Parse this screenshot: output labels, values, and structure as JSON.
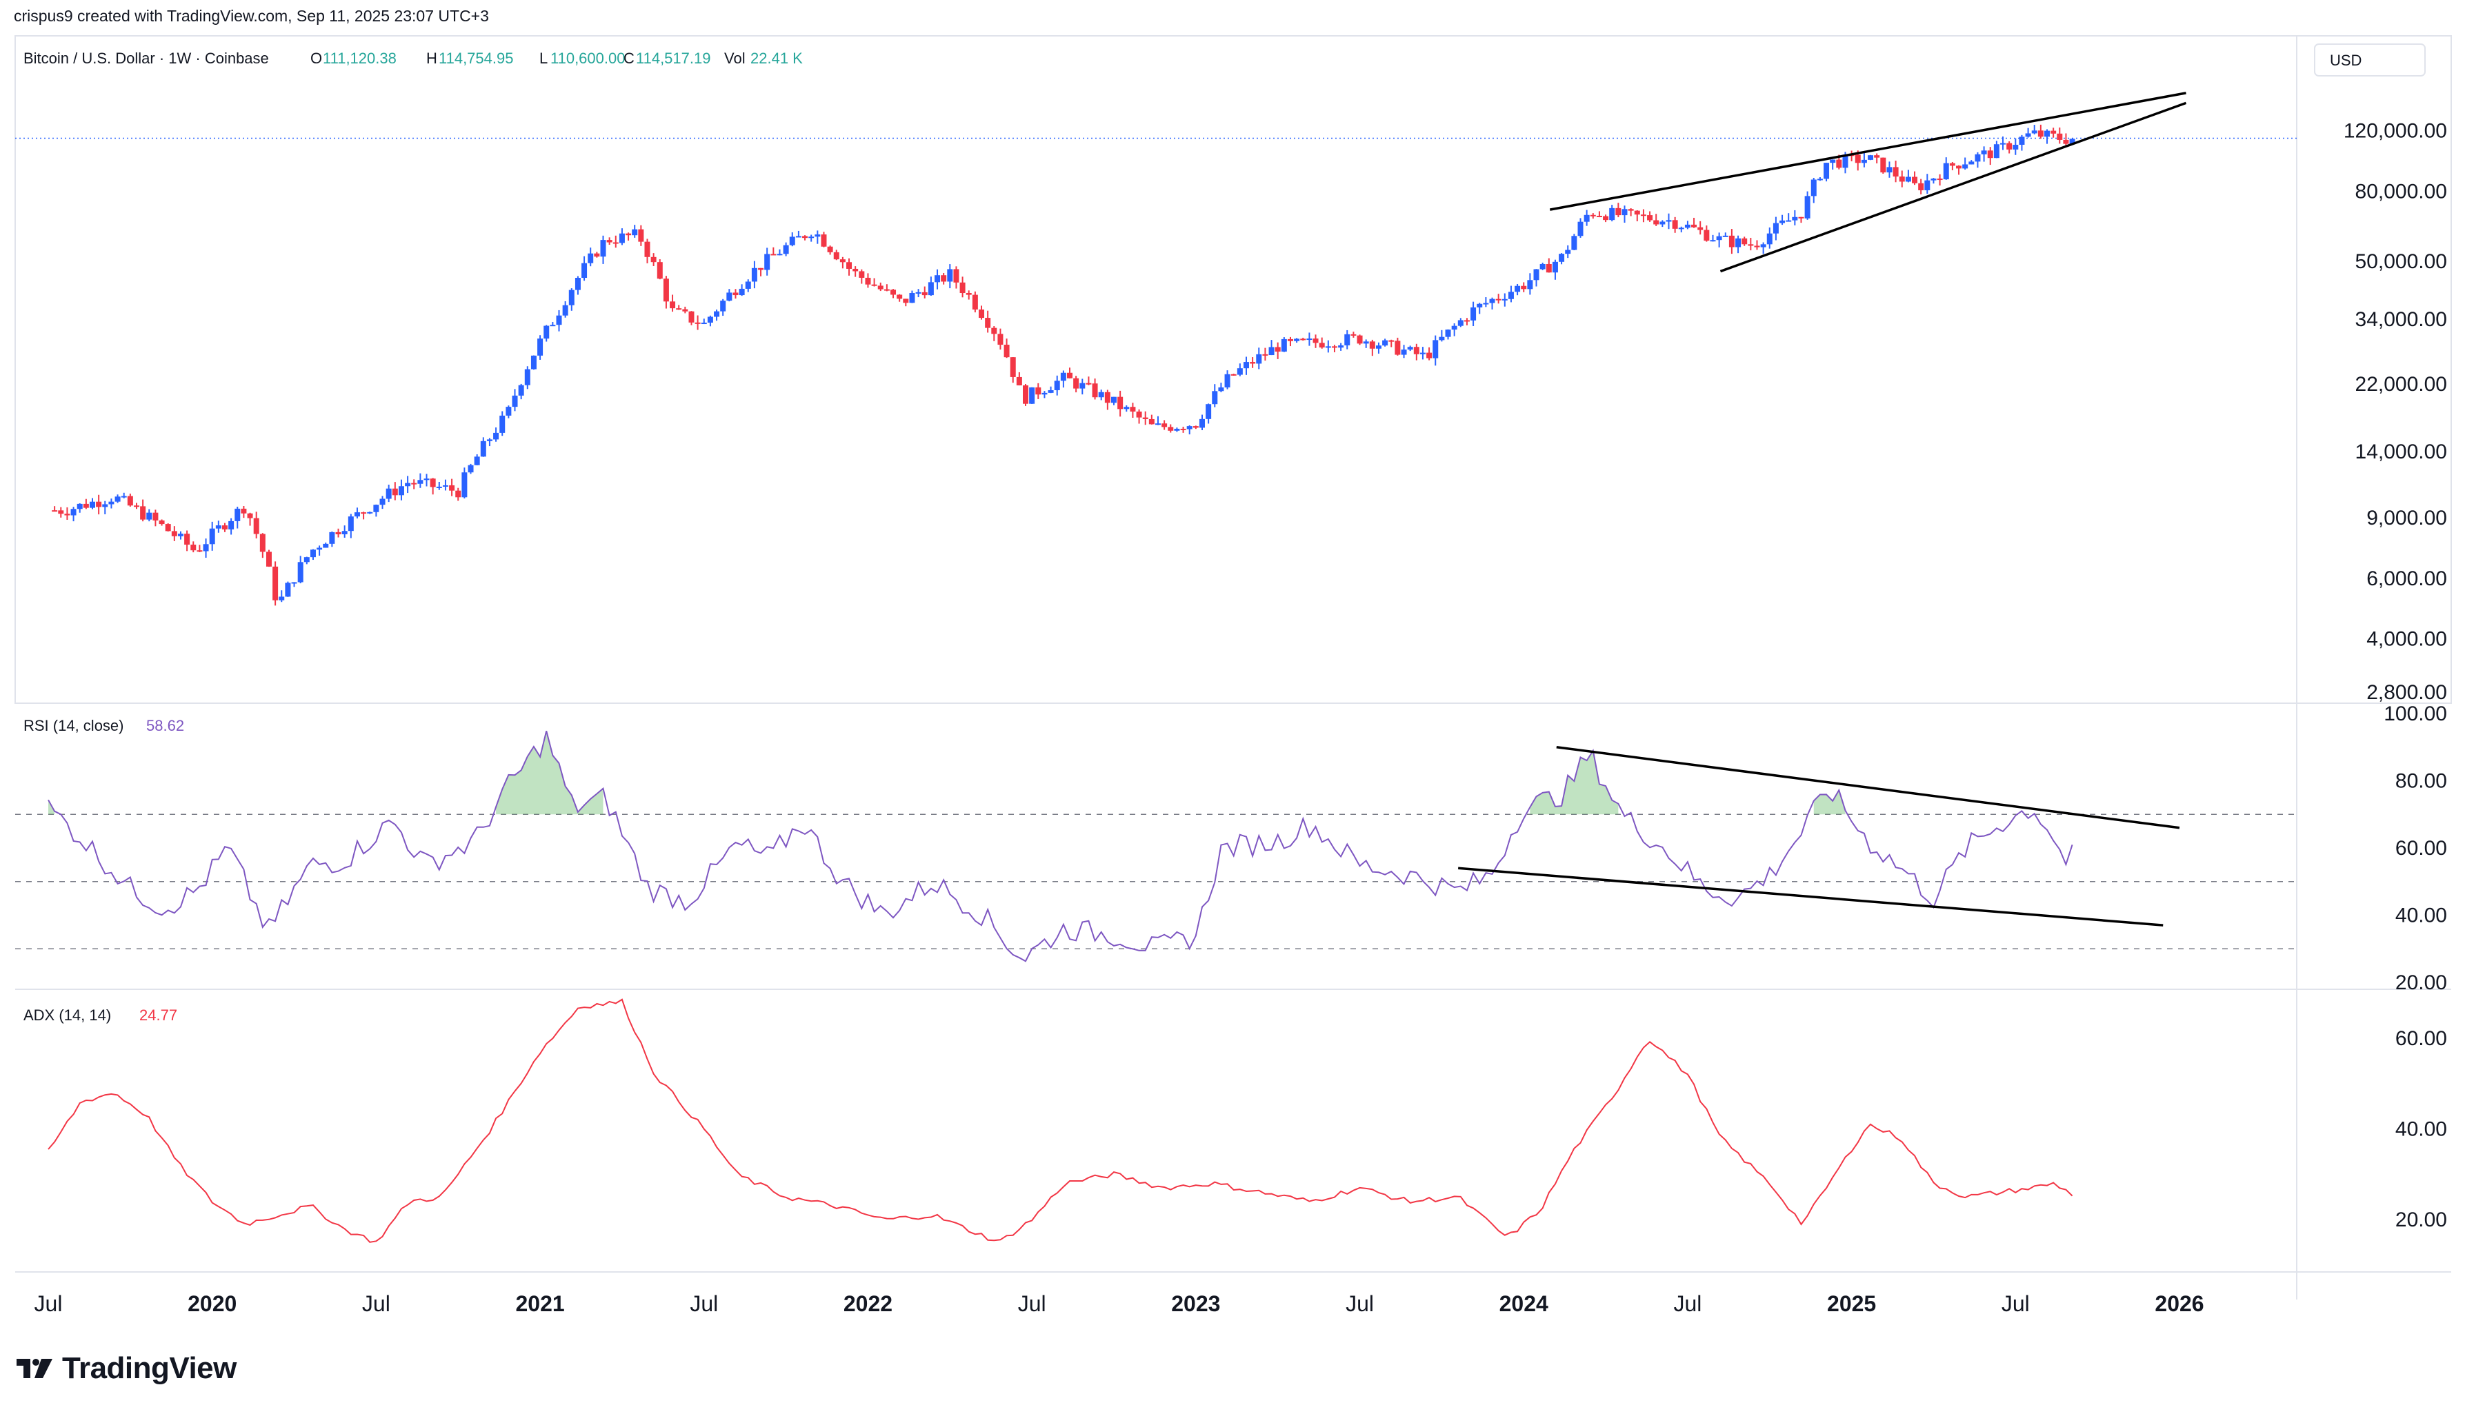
{
  "credit": "crispus9 created with TradingView.com, Sep 11, 2025 23:07 UTC+3",
  "brand": "TradingView",
  "colors": {
    "up": "#2962ff",
    "down": "#f23645",
    "rsi": "#7e57c2",
    "adx": "#f23645",
    "text": "#131722",
    "grid": "#e0e3eb",
    "green": "#26a69a"
  },
  "chart_data": [
    {
      "type": "candlestick",
      "title": "Bitcoin / U.S. Dollar · 1W · Coinbase",
      "ohlc": {
        "open": "111,120.38",
        "high": "114,754.95",
        "low": "110,600.00",
        "close": "114,517.19",
        "volume": "22.41 K"
      },
      "ohlc_labels": {
        "open": "O",
        "high": "H",
        "low": "L",
        "close": "C",
        "volume": "Vol"
      },
      "currency": "USD",
      "scale": "log",
      "y_ticks": [
        "120,000.00",
        "80,000.00",
        "50,000.00",
        "34,000.00",
        "22,000.00",
        "14,000.00",
        "9,000.00",
        "6,000.00",
        "4,000.00",
        "2,800.00"
      ],
      "x_labels": [
        "Jul",
        "2020",
        "Jul",
        "2021",
        "Jul",
        "2022",
        "Jul",
        "2023",
        "Jul",
        "2024",
        "Jul",
        "2025",
        "Jul",
        "2026"
      ],
      "ylim": [
        2800,
        160000
      ],
      "anchors": [
        {
          "t": 2019.55,
          "v": 9500
        },
        {
          "t": 2019.7,
          "v": 10400
        },
        {
          "t": 2019.85,
          "v": 8500
        },
        {
          "t": 2019.95,
          "v": 7200
        },
        {
          "t": 2020.1,
          "v": 9800
        },
        {
          "t": 2020.2,
          "v": 5000
        },
        {
          "t": 2020.3,
          "v": 7200
        },
        {
          "t": 2020.45,
          "v": 9300
        },
        {
          "t": 2020.6,
          "v": 11500
        },
        {
          "t": 2020.75,
          "v": 10800
        },
        {
          "t": 2020.9,
          "v": 18000
        },
        {
          "t": 2021.05,
          "v": 35000
        },
        {
          "t": 2021.2,
          "v": 58000
        },
        {
          "t": 2021.3,
          "v": 60000
        },
        {
          "t": 2021.4,
          "v": 36000
        },
        {
          "t": 2021.5,
          "v": 33000
        },
        {
          "t": 2021.65,
          "v": 47000
        },
        {
          "t": 2021.83,
          "v": 62000
        },
        {
          "t": 2021.95,
          "v": 47000
        },
        {
          "t": 2022.1,
          "v": 38000
        },
        {
          "t": 2022.25,
          "v": 46000
        },
        {
          "t": 2022.4,
          "v": 30000
        },
        {
          "t": 2022.47,
          "v": 20000
        },
        {
          "t": 2022.6,
          "v": 23000
        },
        {
          "t": 2022.75,
          "v": 19500
        },
        {
          "t": 2022.87,
          "v": 16500
        },
        {
          "t": 2023.0,
          "v": 17000
        },
        {
          "t": 2023.1,
          "v": 23000
        },
        {
          "t": 2023.25,
          "v": 28500
        },
        {
          "t": 2023.5,
          "v": 30000
        },
        {
          "t": 2023.7,
          "v": 26500
        },
        {
          "t": 2023.85,
          "v": 36500
        },
        {
          "t": 2024.0,
          "v": 43000
        },
        {
          "t": 2024.12,
          "v": 52000
        },
        {
          "t": 2024.2,
          "v": 70000
        },
        {
          "t": 2024.45,
          "v": 66000
        },
        {
          "t": 2024.6,
          "v": 58000
        },
        {
          "t": 2024.7,
          "v": 56000
        },
        {
          "t": 2024.85,
          "v": 70000
        },
        {
          "t": 2024.92,
          "v": 97000
        },
        {
          "t": 2025.05,
          "v": 100000
        },
        {
          "t": 2025.2,
          "v": 82000
        },
        {
          "t": 2025.3,
          "v": 95000
        },
        {
          "t": 2025.45,
          "v": 106000
        },
        {
          "t": 2025.55,
          "v": 118000
        },
        {
          "t": 2025.65,
          "v": 114000
        },
        {
          "t": 2025.69,
          "v": 114500
        }
      ],
      "last_price": 114517.19,
      "trendlines": [
        {
          "from": {
            "t": 2024.08,
            "v": 71000
          },
          "to": {
            "t": 2026.02,
            "v": 155000
          }
        },
        {
          "from": {
            "t": 2024.6,
            "v": 47000
          },
          "to": {
            "t": 2026.02,
            "v": 145000
          }
        }
      ]
    },
    {
      "type": "line",
      "title": "RSI (14, close)",
      "last_value": "58.62",
      "y_ticks": [
        "100.00",
        "80.00",
        "60.00",
        "40.00",
        "20.00"
      ],
      "ylim": [
        20,
        100
      ],
      "bands": [
        70,
        50,
        30
      ],
      "anchors": [
        {
          "t": 2019.5,
          "v": 72
        },
        {
          "t": 2019.6,
          "v": 63
        },
        {
          "t": 2019.75,
          "v": 48
        },
        {
          "t": 2019.85,
          "v": 42
        },
        {
          "t": 2019.95,
          "v": 47
        },
        {
          "t": 2020.05,
          "v": 60
        },
        {
          "t": 2020.17,
          "v": 35
        },
        {
          "t": 2020.3,
          "v": 55
        },
        {
          "t": 2020.4,
          "v": 56
        },
        {
          "t": 2020.55,
          "v": 68
        },
        {
          "t": 2020.65,
          "v": 55
        },
        {
          "t": 2020.8,
          "v": 62
        },
        {
          "t": 2020.9,
          "v": 78
        },
        {
          "t": 2021.02,
          "v": 93
        },
        {
          "t": 2021.1,
          "v": 72
        },
        {
          "t": 2021.2,
          "v": 75
        },
        {
          "t": 2021.33,
          "v": 48
        },
        {
          "t": 2021.45,
          "v": 44
        },
        {
          "t": 2021.6,
          "v": 61
        },
        {
          "t": 2021.7,
          "v": 57
        },
        {
          "t": 2021.8,
          "v": 68
        },
        {
          "t": 2021.92,
          "v": 50
        },
        {
          "t": 2022.05,
          "v": 40
        },
        {
          "t": 2022.2,
          "v": 50
        },
        {
          "t": 2022.35,
          "v": 40
        },
        {
          "t": 2022.47,
          "v": 27
        },
        {
          "t": 2022.6,
          "v": 36
        },
        {
          "t": 2022.75,
          "v": 34
        },
        {
          "t": 2022.88,
          "v": 30
        },
        {
          "t": 2023.0,
          "v": 34
        },
        {
          "t": 2023.08,
          "v": 60
        },
        {
          "t": 2023.25,
          "v": 62
        },
        {
          "t": 2023.35,
          "v": 67
        },
        {
          "t": 2023.5,
          "v": 55
        },
        {
          "t": 2023.65,
          "v": 52
        },
        {
          "t": 2023.8,
          "v": 47
        },
        {
          "t": 2023.9,
          "v": 52
        },
        {
          "t": 2024.0,
          "v": 72
        },
        {
          "t": 2024.12,
          "v": 76
        },
        {
          "t": 2024.2,
          "v": 88
        },
        {
          "t": 2024.3,
          "v": 70
        },
        {
          "t": 2024.45,
          "v": 58
        },
        {
          "t": 2024.55,
          "v": 48
        },
        {
          "t": 2024.65,
          "v": 45
        },
        {
          "t": 2024.75,
          "v": 52
        },
        {
          "t": 2024.85,
          "v": 65
        },
        {
          "t": 2024.93,
          "v": 78
        },
        {
          "t": 2025.05,
          "v": 62
        },
        {
          "t": 2025.15,
          "v": 54
        },
        {
          "t": 2025.25,
          "v": 45
        },
        {
          "t": 2025.35,
          "v": 60
        },
        {
          "t": 2025.45,
          "v": 67
        },
        {
          "t": 2025.55,
          "v": 72
        },
        {
          "t": 2025.6,
          "v": 66
        },
        {
          "t": 2025.65,
          "v": 56
        },
        {
          "t": 2025.69,
          "v": 58.62
        }
      ],
      "trendlines": [
        {
          "from": {
            "t": 2024.1,
            "v": 90
          },
          "to": {
            "t": 2026.0,
            "v": 66
          }
        },
        {
          "from": {
            "t": 2023.8,
            "v": 54
          },
          "to": {
            "t": 2025.95,
            "v": 37
          }
        }
      ]
    },
    {
      "type": "line",
      "title": "ADX (14, 14)",
      "last_value": "24.77",
      "y_ticks": [
        "60.00",
        "40.00",
        "20.00"
      ],
      "ylim": [
        10,
        70
      ],
      "anchors": [
        {
          "t": 2019.5,
          "v": 35
        },
        {
          "t": 2019.6,
          "v": 46
        },
        {
          "t": 2019.7,
          "v": 48
        },
        {
          "t": 2019.8,
          "v": 43
        },
        {
          "t": 2019.9,
          "v": 32
        },
        {
          "t": 2020.0,
          "v": 24
        },
        {
          "t": 2020.1,
          "v": 19
        },
        {
          "t": 2020.2,
          "v": 21
        },
        {
          "t": 2020.3,
          "v": 23
        },
        {
          "t": 2020.4,
          "v": 18
        },
        {
          "t": 2020.5,
          "v": 15
        },
        {
          "t": 2020.6,
          "v": 24
        },
        {
          "t": 2020.7,
          "v": 25
        },
        {
          "t": 2020.85,
          "v": 40
        },
        {
          "t": 2021.0,
          "v": 57
        },
        {
          "t": 2021.12,
          "v": 67
        },
        {
          "t": 2021.25,
          "v": 68
        },
        {
          "t": 2021.35,
          "v": 52
        },
        {
          "t": 2021.5,
          "v": 40
        },
        {
          "t": 2021.6,
          "v": 30
        },
        {
          "t": 2021.75,
          "v": 25
        },
        {
          "t": 2021.9,
          "v": 23
        },
        {
          "t": 2022.05,
          "v": 20
        },
        {
          "t": 2022.2,
          "v": 21
        },
        {
          "t": 2022.3,
          "v": 18
        },
        {
          "t": 2022.4,
          "v": 15
        },
        {
          "t": 2022.5,
          "v": 20
        },
        {
          "t": 2022.6,
          "v": 28
        },
        {
          "t": 2022.75,
          "v": 30
        },
        {
          "t": 2022.9,
          "v": 27
        },
        {
          "t": 2023.05,
          "v": 28
        },
        {
          "t": 2023.2,
          "v": 26
        },
        {
          "t": 2023.35,
          "v": 24
        },
        {
          "t": 2023.5,
          "v": 27
        },
        {
          "t": 2023.65,
          "v": 24
        },
        {
          "t": 2023.8,
          "v": 25
        },
        {
          "t": 2023.95,
          "v": 16
        },
        {
          "t": 2024.05,
          "v": 22
        },
        {
          "t": 2024.15,
          "v": 35
        },
        {
          "t": 2024.28,
          "v": 48
        },
        {
          "t": 2024.38,
          "v": 60
        },
        {
          "t": 2024.5,
          "v": 52
        },
        {
          "t": 2024.6,
          "v": 38
        },
        {
          "t": 2024.75,
          "v": 28
        },
        {
          "t": 2024.85,
          "v": 19
        },
        {
          "t": 2024.95,
          "v": 30
        },
        {
          "t": 2025.05,
          "v": 41
        },
        {
          "t": 2025.15,
          "v": 38
        },
        {
          "t": 2025.25,
          "v": 28
        },
        {
          "t": 2025.35,
          "v": 25
        },
        {
          "t": 2025.45,
          "v": 26
        },
        {
          "t": 2025.55,
          "v": 27
        },
        {
          "t": 2025.62,
          "v": 28
        },
        {
          "t": 2025.69,
          "v": 24.77
        }
      ]
    }
  ]
}
